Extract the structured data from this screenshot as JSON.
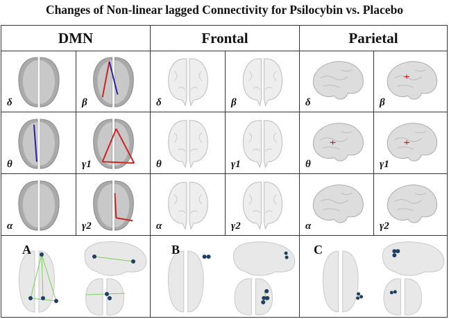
{
  "title": "Changes of Non-linear lagged Connectivity for Psilocybin vs. Placebo",
  "colors": {
    "increase": "#cc2222",
    "decrease": "#2222aa",
    "node": "#1f3f66",
    "edge": "#7ccf5a"
  },
  "sections": [
    {
      "name": "DMN",
      "view": "axial",
      "cells": [
        {
          "label": "δ",
          "edges": []
        },
        {
          "label": "β",
          "edges": [
            "increase",
            "decrease"
          ]
        },
        {
          "label": "θ",
          "edges": [
            "decrease"
          ]
        },
        {
          "label": "γ1",
          "edges": [
            "increase",
            "increase",
            "increase"
          ]
        },
        {
          "label": "α",
          "edges": []
        },
        {
          "label": "γ2",
          "edges": [
            "increase",
            "increase"
          ]
        }
      ],
      "panel_label": "A"
    },
    {
      "name": "Frontal",
      "view": "coronal",
      "cells": [
        {
          "label": "δ",
          "edges": []
        },
        {
          "label": "β",
          "edges": []
        },
        {
          "label": "θ",
          "edges": []
        },
        {
          "label": "γ1",
          "edges": []
        },
        {
          "label": "α",
          "edges": []
        },
        {
          "label": "γ2",
          "edges": []
        }
      ],
      "panel_label": "B"
    },
    {
      "name": "Parietal",
      "view": "sagittal",
      "cells": [
        {
          "label": "δ",
          "edges": []
        },
        {
          "label": "β",
          "edges": [
            "increase"
          ]
        },
        {
          "label": "θ",
          "edges": [
            "increase"
          ]
        },
        {
          "label": "γ1",
          "edges": [
            "increase"
          ]
        },
        {
          "label": "α",
          "edges": []
        },
        {
          "label": "γ2",
          "edges": []
        }
      ],
      "panel_label": "C"
    }
  ]
}
